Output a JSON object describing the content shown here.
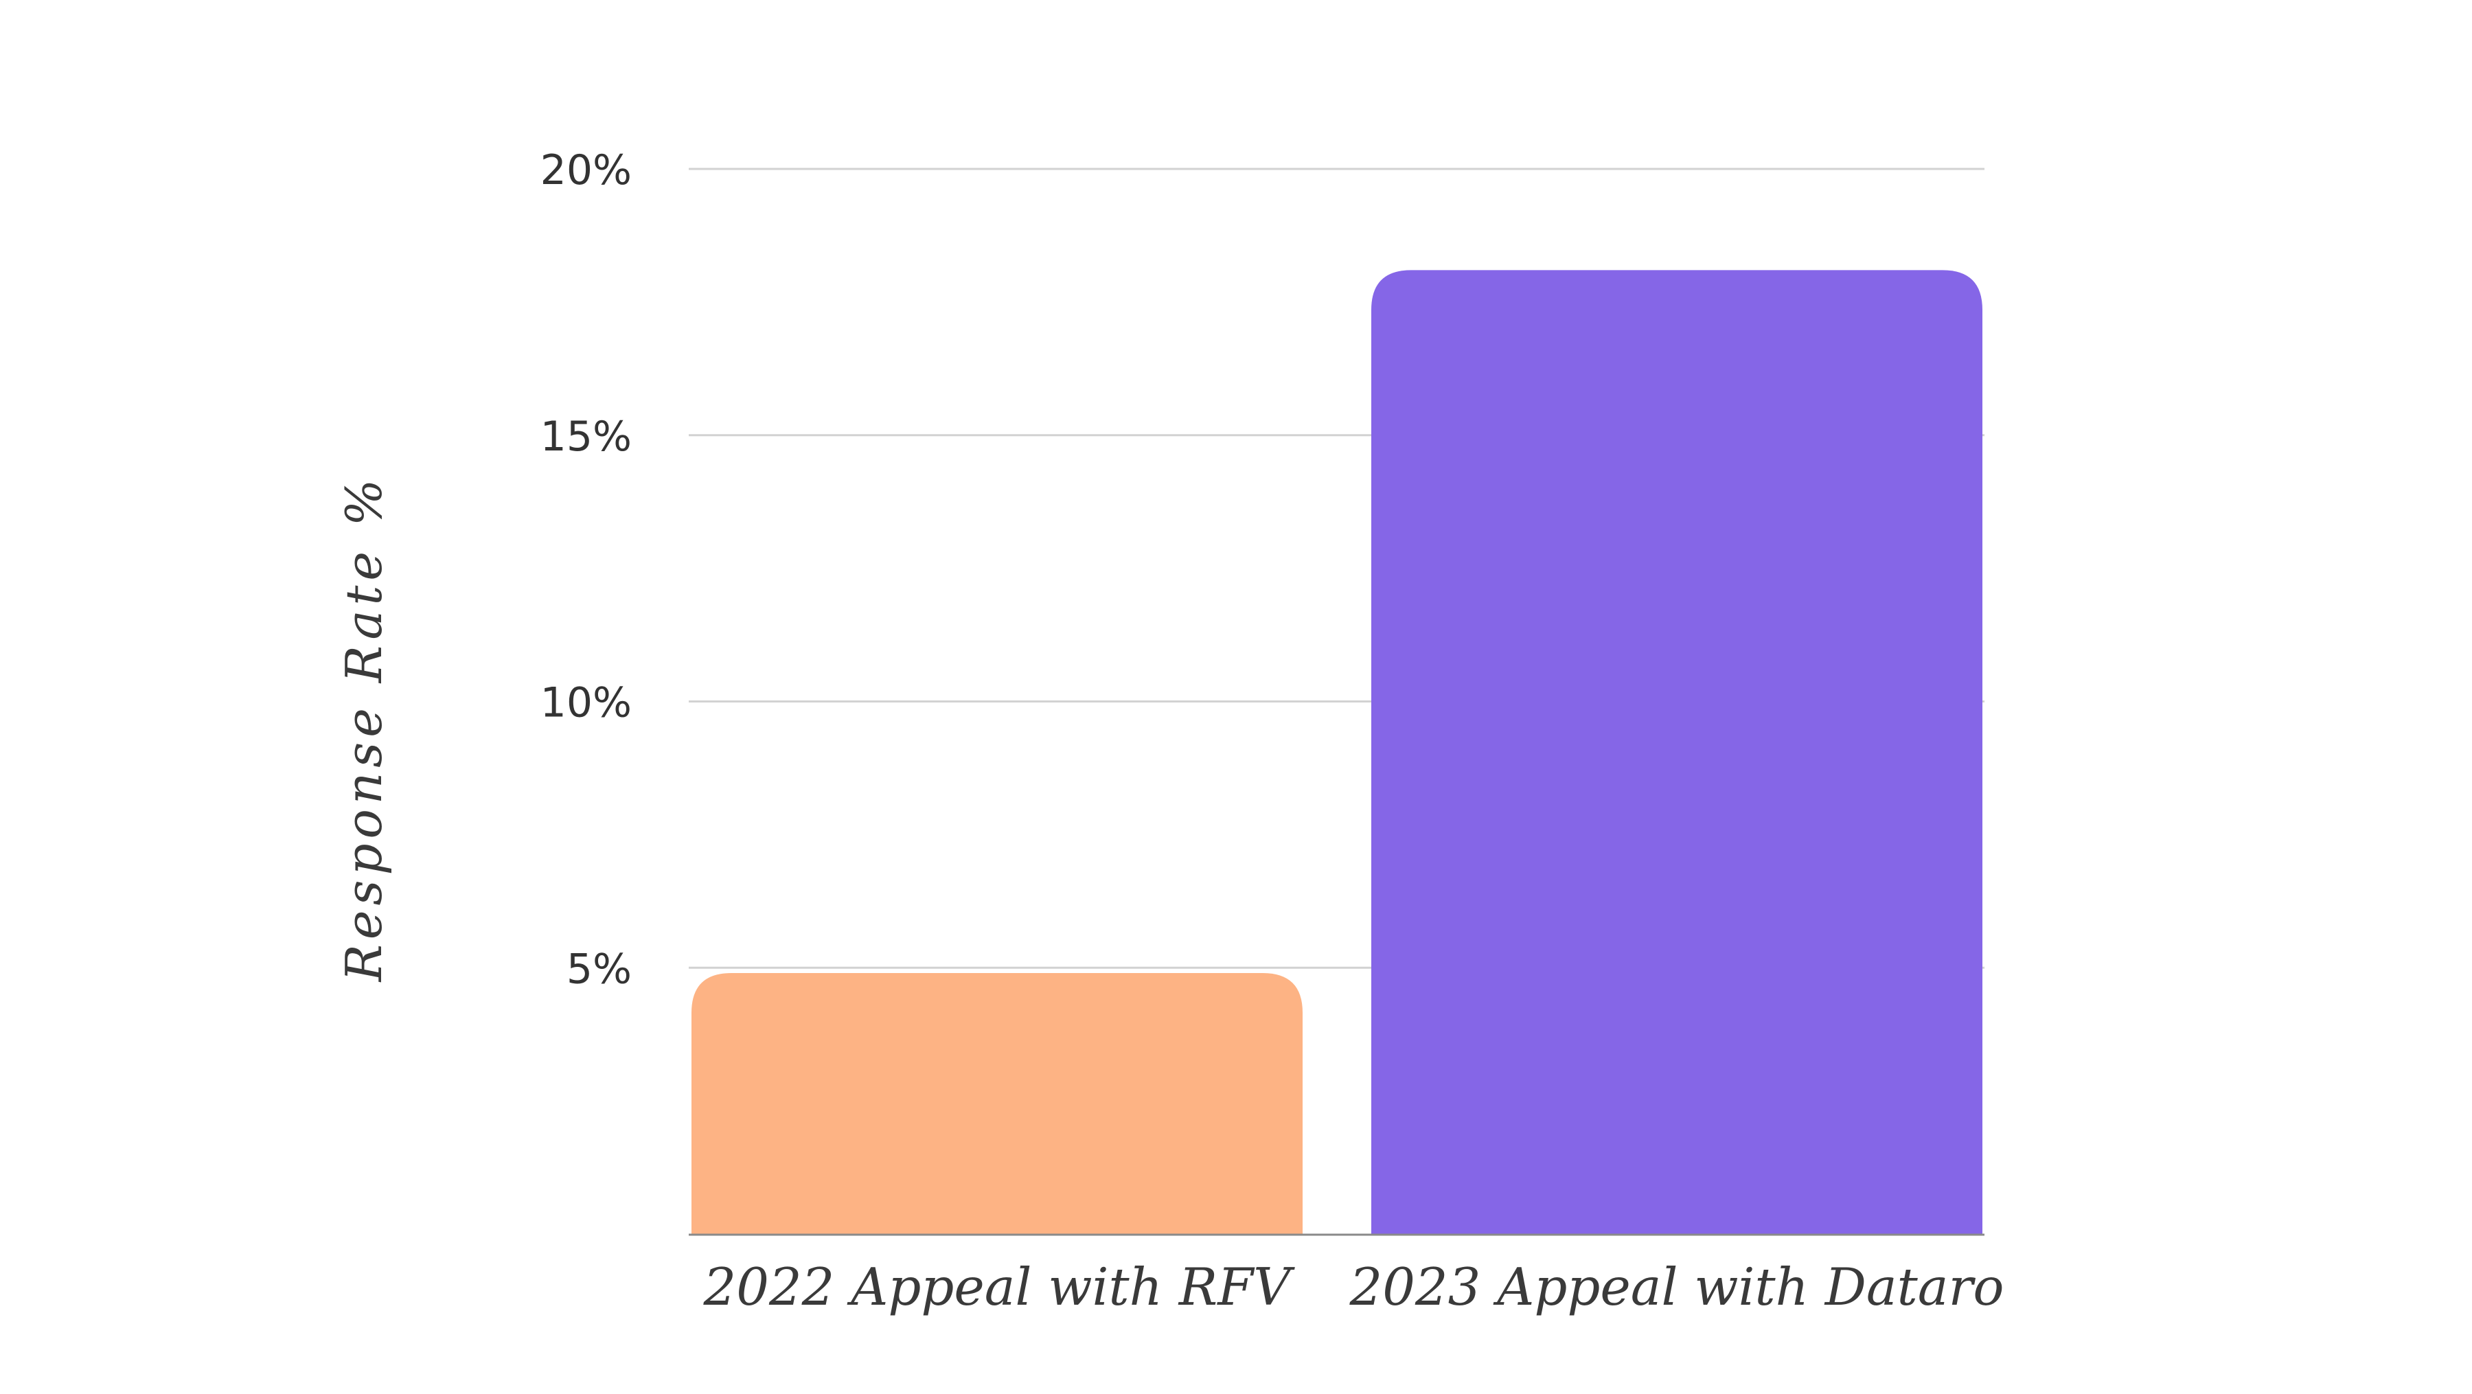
{
  "chart_data": {
    "type": "bar",
    "title": "",
    "xlabel": "",
    "ylabel": "Response Rate %",
    "categories": [
      "2022 Appeal with RFV",
      "2023 Appeal with Dataro"
    ],
    "values": [
      4.9,
      18.1
    ],
    "ylim": [
      0,
      20
    ],
    "yticks": [
      0,
      5,
      10,
      15,
      20
    ],
    "ytick_labels": [
      "",
      "5%",
      "10%",
      "15%",
      "20%"
    ],
    "grid": true,
    "legend": "none",
    "colors": [
      "#FDB384",
      "#8566E7"
    ]
  }
}
